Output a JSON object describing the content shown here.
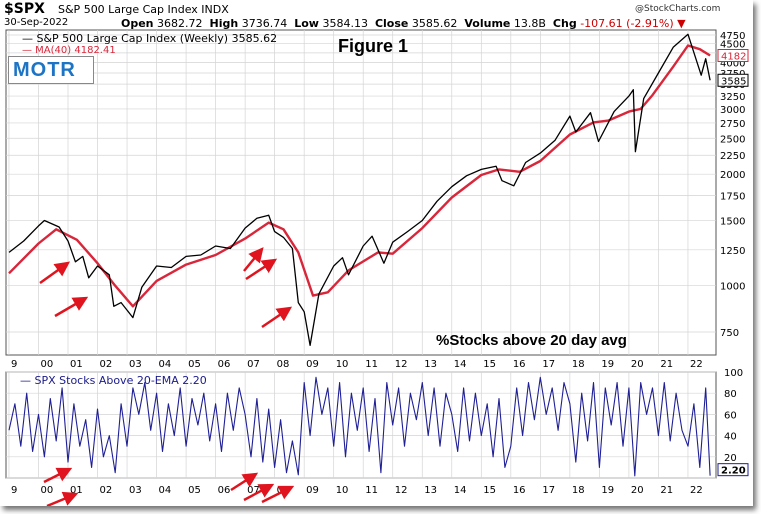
{
  "header": {
    "ticker": "$SPX",
    "description": "S&P 500 Large Cap Index  INDX",
    "date": "30-Sep-2022",
    "open_label": "Open",
    "open": "3682.72",
    "high_label": "High",
    "high": "3736.74",
    "low_label": "Low",
    "low": "3584.13",
    "close_label": "Close",
    "close": "3585.62",
    "volume_label": "Volume",
    "volume": "13.8B",
    "chg_label": "Chg",
    "chg": "-107.61 (-2.91%)",
    "credit": "@StockCharts.com"
  },
  "legend": {
    "close": "— S&P 500 Large Cap Index (Weekly) 3585.62",
    "ma": "— MA(40) 4182.41"
  },
  "logo": "MOTR",
  "annotations": {
    "figure": "Figure 1",
    "indicator_note": "%Stocks above 20 day avg"
  },
  "indicator_label": "— SPX Stocks Above 20-EMA 2.20",
  "colors": {
    "price": "#000000",
    "ma": "#d8263a",
    "indicator": "#1f1f96",
    "arrows": "#e0141e",
    "grid": "#d4d4d4"
  },
  "chart_data": [
    {
      "type": "line",
      "title": "S&P 500 Large Cap Index (Weekly)",
      "scale": "log",
      "ylim": [
        650,
        4900
      ],
      "y_ticks": [
        750,
        1000,
        1250,
        1500,
        1750,
        2000,
        2250,
        2500,
        2750,
        3000,
        3250,
        3500,
        3750,
        4000,
        4250,
        4500,
        4750
      ],
      "x_ticks": [
        "9",
        "00",
        "01",
        "02",
        "03",
        "04",
        "05",
        "06",
        "07",
        "08",
        "09",
        "10",
        "11",
        "12",
        "13",
        "14",
        "15",
        "16",
        "17",
        "18",
        "19",
        "20",
        "21",
        "22"
      ],
      "price_tags": [
        "4182",
        "3585"
      ],
      "grid": true,
      "series": [
        {
          "name": "S&P 500 Large Cap Index (Weekly)",
          "x": [
            1999.0,
            1999.5,
            2000.0,
            2000.2,
            2000.7,
            2001.0,
            2001.25,
            2001.5,
            2001.7,
            2002.0,
            2002.4,
            2002.55,
            2002.8,
            2003.2,
            2003.5,
            2004.0,
            2004.5,
            2005.0,
            2005.5,
            2006.0,
            2006.5,
            2007.0,
            2007.4,
            2007.8,
            2008.0,
            2008.3,
            2008.6,
            2008.8,
            2009.0,
            2009.2,
            2009.5,
            2010.0,
            2010.3,
            2010.5,
            2011.0,
            2011.3,
            2011.7,
            2012.0,
            2012.5,
            2013.0,
            2013.5,
            2014.0,
            2014.5,
            2015.0,
            2015.5,
            2015.7,
            2016.1,
            2016.5,
            2017.0,
            2017.5,
            2018.0,
            2018.2,
            2018.7,
            2018.97,
            2019.5,
            2020.0,
            2020.15,
            2020.22,
            2020.5,
            2021.0,
            2021.5,
            2022.0,
            2022.45,
            2022.6,
            2022.75
          ],
          "values": [
            1230,
            1320,
            1450,
            1500,
            1440,
            1320,
            1160,
            1200,
            1050,
            1130,
            1070,
            880,
            900,
            820,
            990,
            1130,
            1120,
            1200,
            1210,
            1280,
            1260,
            1430,
            1520,
            1550,
            1400,
            1350,
            1260,
            900,
            850,
            690,
            950,
            1130,
            1190,
            1070,
            1280,
            1360,
            1150,
            1310,
            1400,
            1500,
            1690,
            1850,
            1980,
            2060,
            2100,
            1920,
            1860,
            2150,
            2280,
            2470,
            2870,
            2600,
            2930,
            2450,
            2950,
            3250,
            3380,
            2300,
            3200,
            3750,
            4400,
            4770,
            3700,
            4100,
            3585
          ]
        },
        {
          "name": "MA(40)",
          "x": [
            1999.0,
            2000.0,
            2000.6,
            2001.3,
            2002.0,
            2002.6,
            2003.2,
            2004.0,
            2005.0,
            2006.0,
            2007.0,
            2007.8,
            2008.3,
            2008.8,
            2009.3,
            2009.8,
            2010.5,
            2011.5,
            2012.0,
            2013.0,
            2014.0,
            2015.0,
            2015.6,
            2016.3,
            2017.0,
            2018.0,
            2018.8,
            2019.3,
            2020.0,
            2020.4,
            2020.8,
            2021.5,
            2022.0,
            2022.4,
            2022.75
          ],
          "values": [
            1080,
            1300,
            1420,
            1330,
            1150,
            1000,
            880,
            1030,
            1140,
            1210,
            1340,
            1480,
            1420,
            1230,
            940,
            960,
            1100,
            1230,
            1220,
            1430,
            1730,
            1990,
            2060,
            2030,
            2170,
            2560,
            2760,
            2790,
            2950,
            3000,
            3270,
            3900,
            4450,
            4350,
            4182
          ]
        }
      ]
    },
    {
      "type": "line",
      "title": "SPX Stocks Above 20-EMA",
      "ylim": [
        0,
        100
      ],
      "y_ticks": [
        0,
        20,
        40,
        60,
        80,
        100
      ],
      "x_ticks": [
        "9",
        "00",
        "01",
        "02",
        "03",
        "04",
        "05",
        "06",
        "07",
        "08",
        "09",
        "10",
        "11",
        "12",
        "13",
        "14",
        "15",
        "16",
        "17",
        "18",
        "19",
        "20",
        "21",
        "22"
      ],
      "last_value": "2.20",
      "series": [
        {
          "name": "SPX Stocks Above 20-EMA",
          "x": [
            1999.0,
            1999.2,
            1999.4,
            1999.6,
            1999.8,
            2000.0,
            2000.2,
            2000.4,
            2000.6,
            2000.8,
            2001.0,
            2001.2,
            2001.4,
            2001.6,
            2001.8,
            2002.0,
            2002.2,
            2002.4,
            2002.6,
            2002.8,
            2003.0,
            2003.2,
            2003.4,
            2003.6,
            2003.8,
            2004.0,
            2004.2,
            2004.4,
            2004.6,
            2004.8,
            2005.0,
            2005.2,
            2005.4,
            2005.6,
            2005.8,
            2006.0,
            2006.2,
            2006.4,
            2006.6,
            2006.8,
            2007.0,
            2007.2,
            2007.4,
            2007.6,
            2007.8,
            2008.0,
            2008.2,
            2008.4,
            2008.6,
            2008.8,
            2009.0,
            2009.2,
            2009.4,
            2009.6,
            2009.8,
            2010.0,
            2010.2,
            2010.4,
            2010.6,
            2010.8,
            2011.0,
            2011.2,
            2011.4,
            2011.6,
            2011.8,
            2012.0,
            2012.2,
            2012.4,
            2012.6,
            2012.8,
            2013.0,
            2013.2,
            2013.4,
            2013.6,
            2013.8,
            2014.0,
            2014.2,
            2014.4,
            2014.6,
            2014.8,
            2015.0,
            2015.2,
            2015.4,
            2015.6,
            2015.8,
            2016.0,
            2016.2,
            2016.4,
            2016.6,
            2016.8,
            2017.0,
            2017.2,
            2017.4,
            2017.6,
            2017.8,
            2018.0,
            2018.2,
            2018.4,
            2018.6,
            2018.8,
            2019.0,
            2019.2,
            2019.4,
            2019.6,
            2019.8,
            2020.0,
            2020.2,
            2020.4,
            2020.6,
            2020.8,
            2021.0,
            2021.2,
            2021.4,
            2021.6,
            2021.8,
            2022.0,
            2022.2,
            2022.4,
            2022.6,
            2022.75
          ],
          "values": [
            45,
            70,
            30,
            80,
            25,
            60,
            20,
            75,
            35,
            85,
            15,
            70,
            30,
            55,
            10,
            65,
            20,
            40,
            5,
            70,
            30,
            85,
            60,
            90,
            45,
            80,
            25,
            70,
            40,
            85,
            30,
            75,
            50,
            80,
            35,
            70,
            25,
            80,
            45,
            85,
            60,
            20,
            75,
            15,
            65,
            10,
            55,
            5,
            35,
            3,
            90,
            40,
            95,
            60,
            85,
            30,
            90,
            20,
            80,
            45,
            85,
            25,
            75,
            5,
            90,
            50,
            85,
            30,
            80,
            55,
            90,
            40,
            85,
            30,
            80,
            60,
            25,
            85,
            35,
            80,
            40,
            70,
            20,
            75,
            10,
            30,
            85,
            40,
            90,
            55,
            95,
            60,
            85,
            45,
            90,
            70,
            15,
            80,
            35,
            90,
            10,
            85,
            50,
            90,
            30,
            85,
            2,
            90,
            60,
            85,
            40,
            90,
            35,
            80,
            45,
            30,
            70,
            10,
            85,
            2.2
          ]
        }
      ]
    }
  ]
}
